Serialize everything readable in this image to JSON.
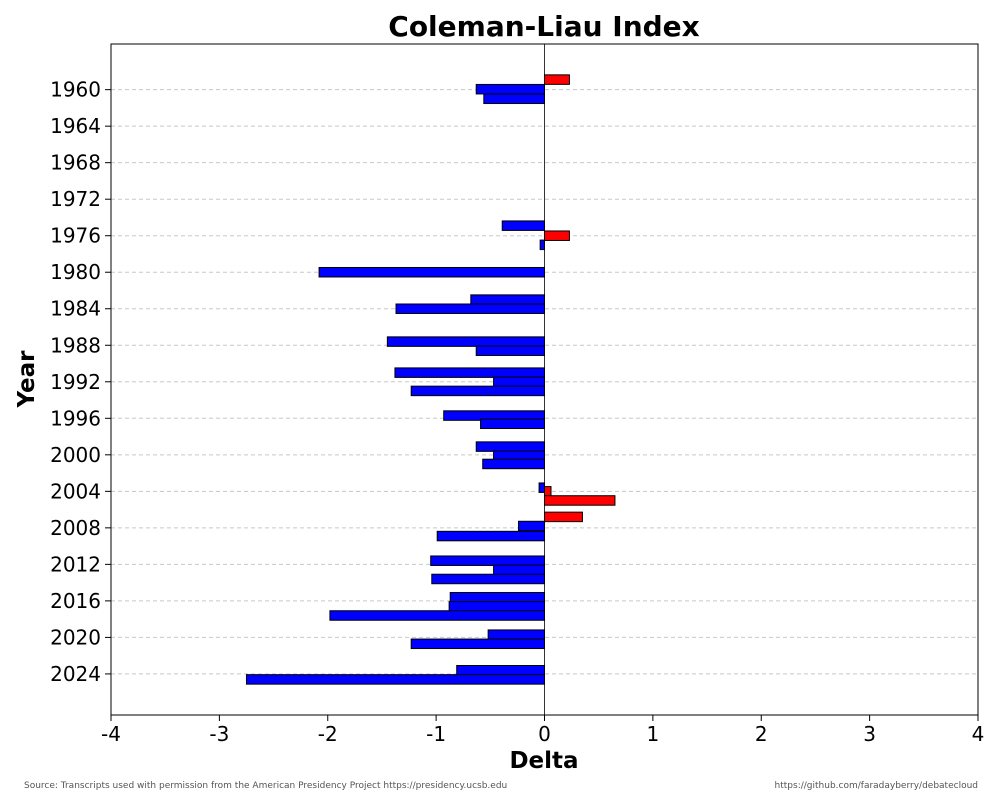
{
  "chart_data": {
    "type": "bar",
    "orientation": "horizontal",
    "title": "Coleman-Liau Index",
    "xlabel": "Delta",
    "ylabel": "Year",
    "xlim": [
      -4,
      4
    ],
    "xticks": [
      "-4",
      "-3",
      "-2",
      "-1",
      "0",
      "1",
      "2",
      "3",
      "4"
    ],
    "yticks": [
      "1960",
      "1964",
      "1968",
      "1972",
      "1976",
      "1980",
      "1984",
      "1988",
      "1992",
      "1996",
      "2000",
      "2004",
      "2008",
      "2012",
      "2016",
      "2020",
      "2024"
    ],
    "ylim": [
      1955,
      2028.5
    ],
    "grid": "horizontal dashed",
    "colors": {
      "positive": "#ff0000",
      "negative": "#0000ff",
      "edge": "#000000",
      "grid": "#c8c8c8"
    },
    "bars": [
      {
        "y": 1958.9,
        "value": 0.23
      },
      {
        "y": 1959.95,
        "value": -0.63
      },
      {
        "y": 1961.0,
        "value": -0.56
      },
      {
        "y": 1974.9,
        "value": -0.39
      },
      {
        "y": 1976.0,
        "value": 0.23
      },
      {
        "y": 1977.0,
        "value": -0.04
      },
      {
        "y": 1980.0,
        "value": -2.08
      },
      {
        "y": 1983.0,
        "value": -0.68
      },
      {
        "y": 1984.0,
        "value": -1.37
      },
      {
        "y": 1987.6,
        "value": -1.45
      },
      {
        "y": 1988.6,
        "value": -0.63
      },
      {
        "y": 1991.0,
        "value": -1.38
      },
      {
        "y": 1992.0,
        "value": -0.47
      },
      {
        "y": 1993.0,
        "value": -1.23
      },
      {
        "y": 1995.7,
        "value": -0.93
      },
      {
        "y": 1996.6,
        "value": -0.59
      },
      {
        "y": 1999.1,
        "value": -0.63
      },
      {
        "y": 2000.1,
        "value": -0.47
      },
      {
        "y": 2001.0,
        "value": -0.57
      },
      {
        "y": 2003.6,
        "value": -0.05
      },
      {
        "y": 2004.0,
        "value": 0.06
      },
      {
        "y": 2005.0,
        "value": 0.65
      },
      {
        "y": 2006.8,
        "value": 0.35
      },
      {
        "y": 2007.8,
        "value": -0.24
      },
      {
        "y": 2008.9,
        "value": -0.99
      },
      {
        "y": 2011.6,
        "value": -1.05
      },
      {
        "y": 2012.6,
        "value": -0.47
      },
      {
        "y": 2013.6,
        "value": -1.04
      },
      {
        "y": 2015.6,
        "value": -0.87
      },
      {
        "y": 2016.6,
        "value": -0.88
      },
      {
        "y": 2017.6,
        "value": -1.98
      },
      {
        "y": 2019.7,
        "value": -0.52
      },
      {
        "y": 2020.7,
        "value": -1.23
      },
      {
        "y": 2023.6,
        "value": -0.81
      },
      {
        "y": 2024.6,
        "value": -2.75
      }
    ]
  },
  "footer": {
    "source": "Source: Transcripts used with permission from the American Presidency Project https://presidency.ucsb.edu",
    "repo": "https://github.com/faradayberry/debatecloud"
  }
}
